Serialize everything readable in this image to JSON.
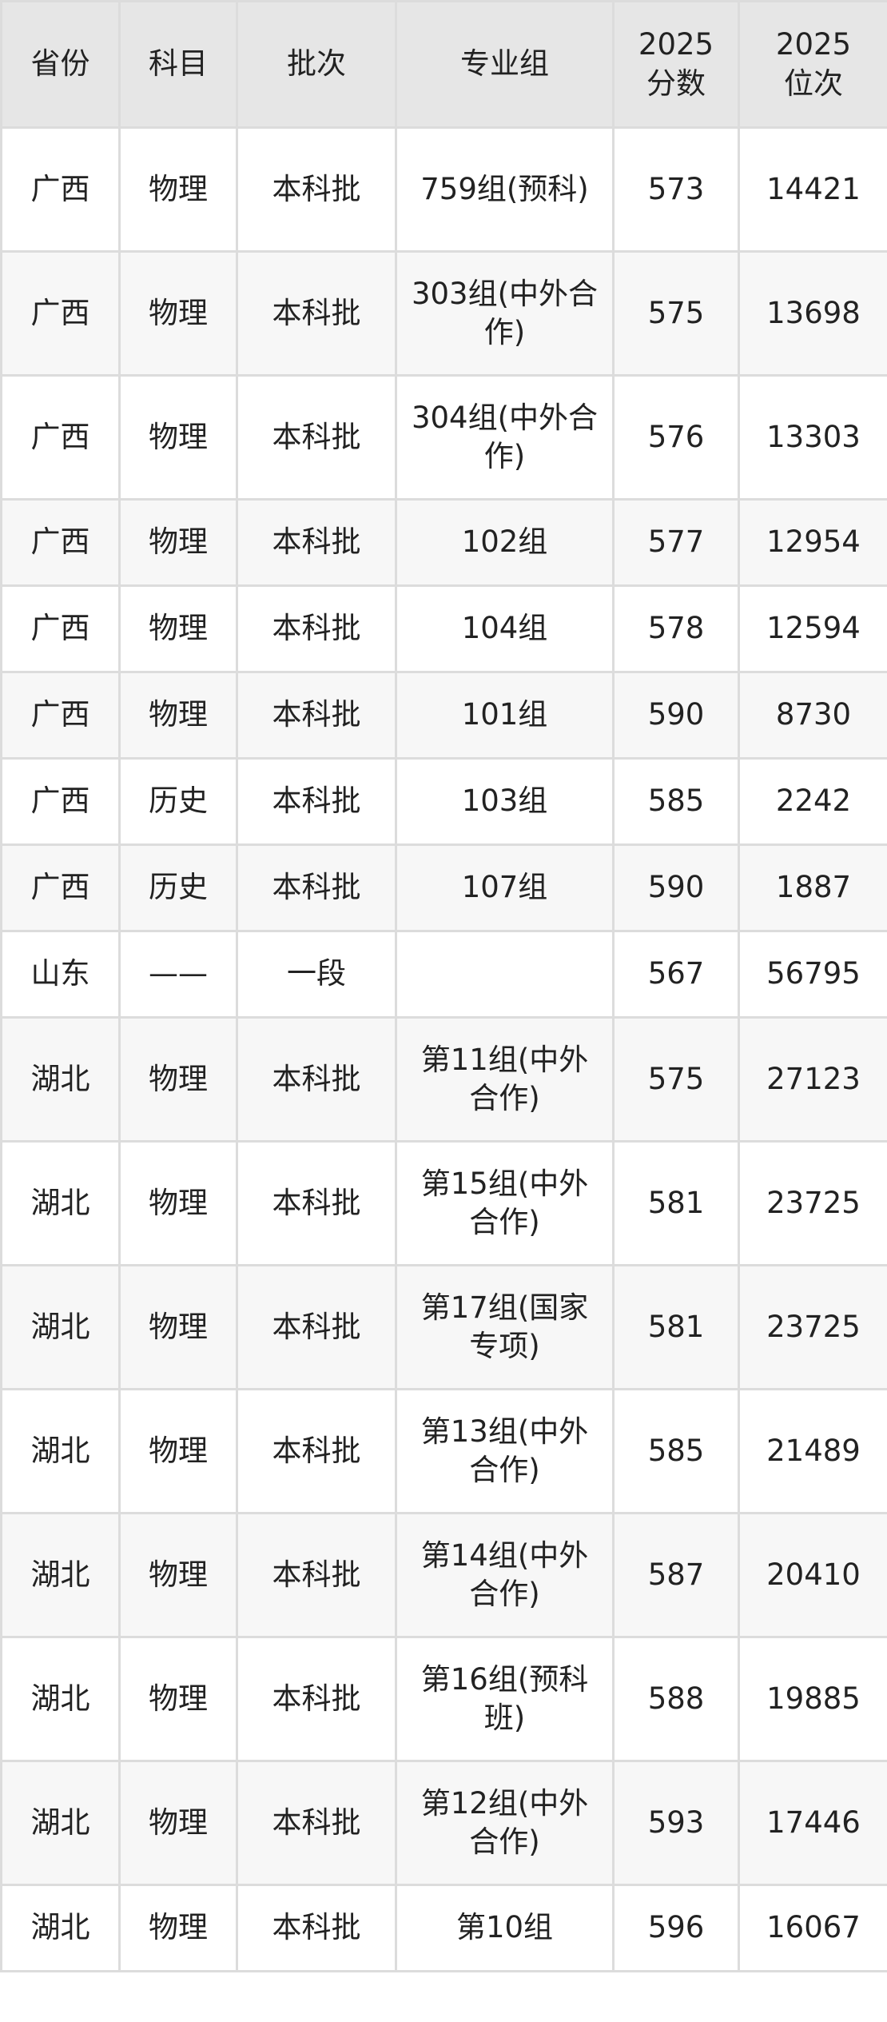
{
  "table": {
    "headers": [
      "省份",
      "科目",
      "批次",
      "专业组",
      "2025\n分数",
      "2025\n位次"
    ],
    "rows": [
      [
        "广西",
        "物理",
        "本科批",
        "759组(预科)",
        "573",
        "14421"
      ],
      [
        "广西",
        "物理",
        "本科批",
        "303组(中外合作)",
        "575",
        "13698"
      ],
      [
        "广西",
        "物理",
        "本科批",
        "304组(中外合作)",
        "576",
        "13303"
      ],
      [
        "广西",
        "物理",
        "本科批",
        "102组",
        "577",
        "12954"
      ],
      [
        "广西",
        "物理",
        "本科批",
        "104组",
        "578",
        "12594"
      ],
      [
        "广西",
        "物理",
        "本科批",
        "101组",
        "590",
        "8730"
      ],
      [
        "广西",
        "历史",
        "本科批",
        "103组",
        "585",
        "2242"
      ],
      [
        "广西",
        "历史",
        "本科批",
        "107组",
        "590",
        "1887"
      ],
      [
        "山东",
        "——",
        "一段",
        "",
        "567",
        "56795"
      ],
      [
        "湖北",
        "物理",
        "本科批",
        "第11组(中外合作)",
        "575",
        "27123"
      ],
      [
        "湖北",
        "物理",
        "本科批",
        "第15组(中外合作)",
        "581",
        "23725"
      ],
      [
        "湖北",
        "物理",
        "本科批",
        "第17组(国家专项)",
        "581",
        "23725"
      ],
      [
        "湖北",
        "物理",
        "本科批",
        "第13组(中外合作)",
        "585",
        "21489"
      ],
      [
        "湖北",
        "物理",
        "本科批",
        "第14组(中外合作)",
        "587",
        "20410"
      ],
      [
        "湖北",
        "物理",
        "本科批",
        "第16组(预科班)",
        "588",
        "19885"
      ],
      [
        "湖北",
        "物理",
        "本科批",
        "第12组(中外合作)",
        "593",
        "17446"
      ],
      [
        "湖北",
        "物理",
        "本科批",
        "第10组",
        "596",
        "16067"
      ]
    ]
  }
}
